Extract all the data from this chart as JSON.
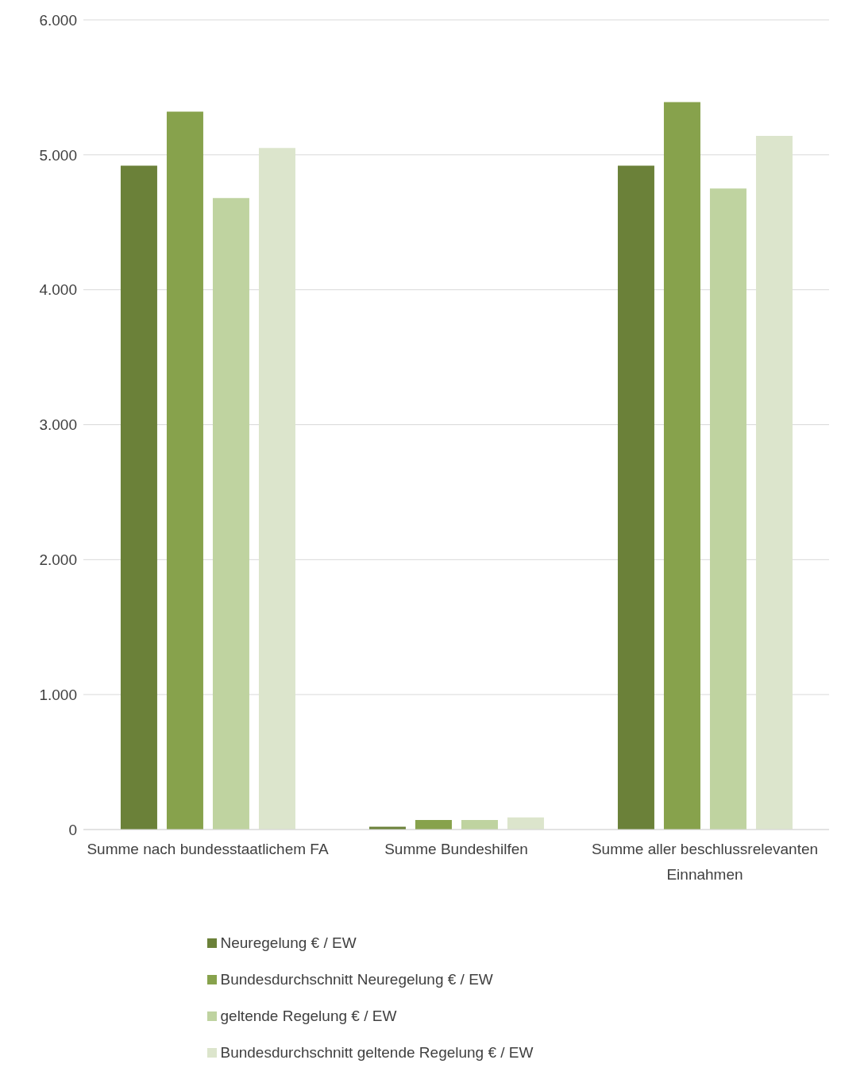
{
  "chart_data": {
    "type": "bar",
    "categories": [
      "Summe nach bundesstaatlichem FA",
      "Summe Bundeshilfen",
      "Summe aller beschlussrelevanten Einnahmen"
    ],
    "series": [
      {
        "name": "Neuregelung € / EW",
        "color": "#6b8139",
        "values": [
          4920,
          20,
          4920
        ]
      },
      {
        "name": "Bundesdurchschnitt Neuregelung € / EW",
        "color": "#87a24c",
        "values": [
          5320,
          70,
          5390
        ]
      },
      {
        "name": "geltende Regelung € / EW",
        "color": "#bfd3a0",
        "values": [
          4680,
          70,
          4750
        ]
      },
      {
        "name": "Bundesdurchschnitt geltende Regelung € / EW",
        "color": "#dce5cc",
        "values": [
          5050,
          90,
          5140
        ]
      }
    ],
    "ylim": [
      0,
      6000
    ],
    "yticks": [
      {
        "value": 0,
        "label": "0"
      },
      {
        "value": 1000,
        "label": "1.000"
      },
      {
        "value": 2000,
        "label": "2.000"
      },
      {
        "value": 3000,
        "label": "3.000"
      },
      {
        "value": 4000,
        "label": "4.000"
      },
      {
        "value": 5000,
        "label": "5.000"
      },
      {
        "value": 6000,
        "label": "6.000"
      }
    ],
    "grid": "y",
    "legend": "bottom"
  }
}
